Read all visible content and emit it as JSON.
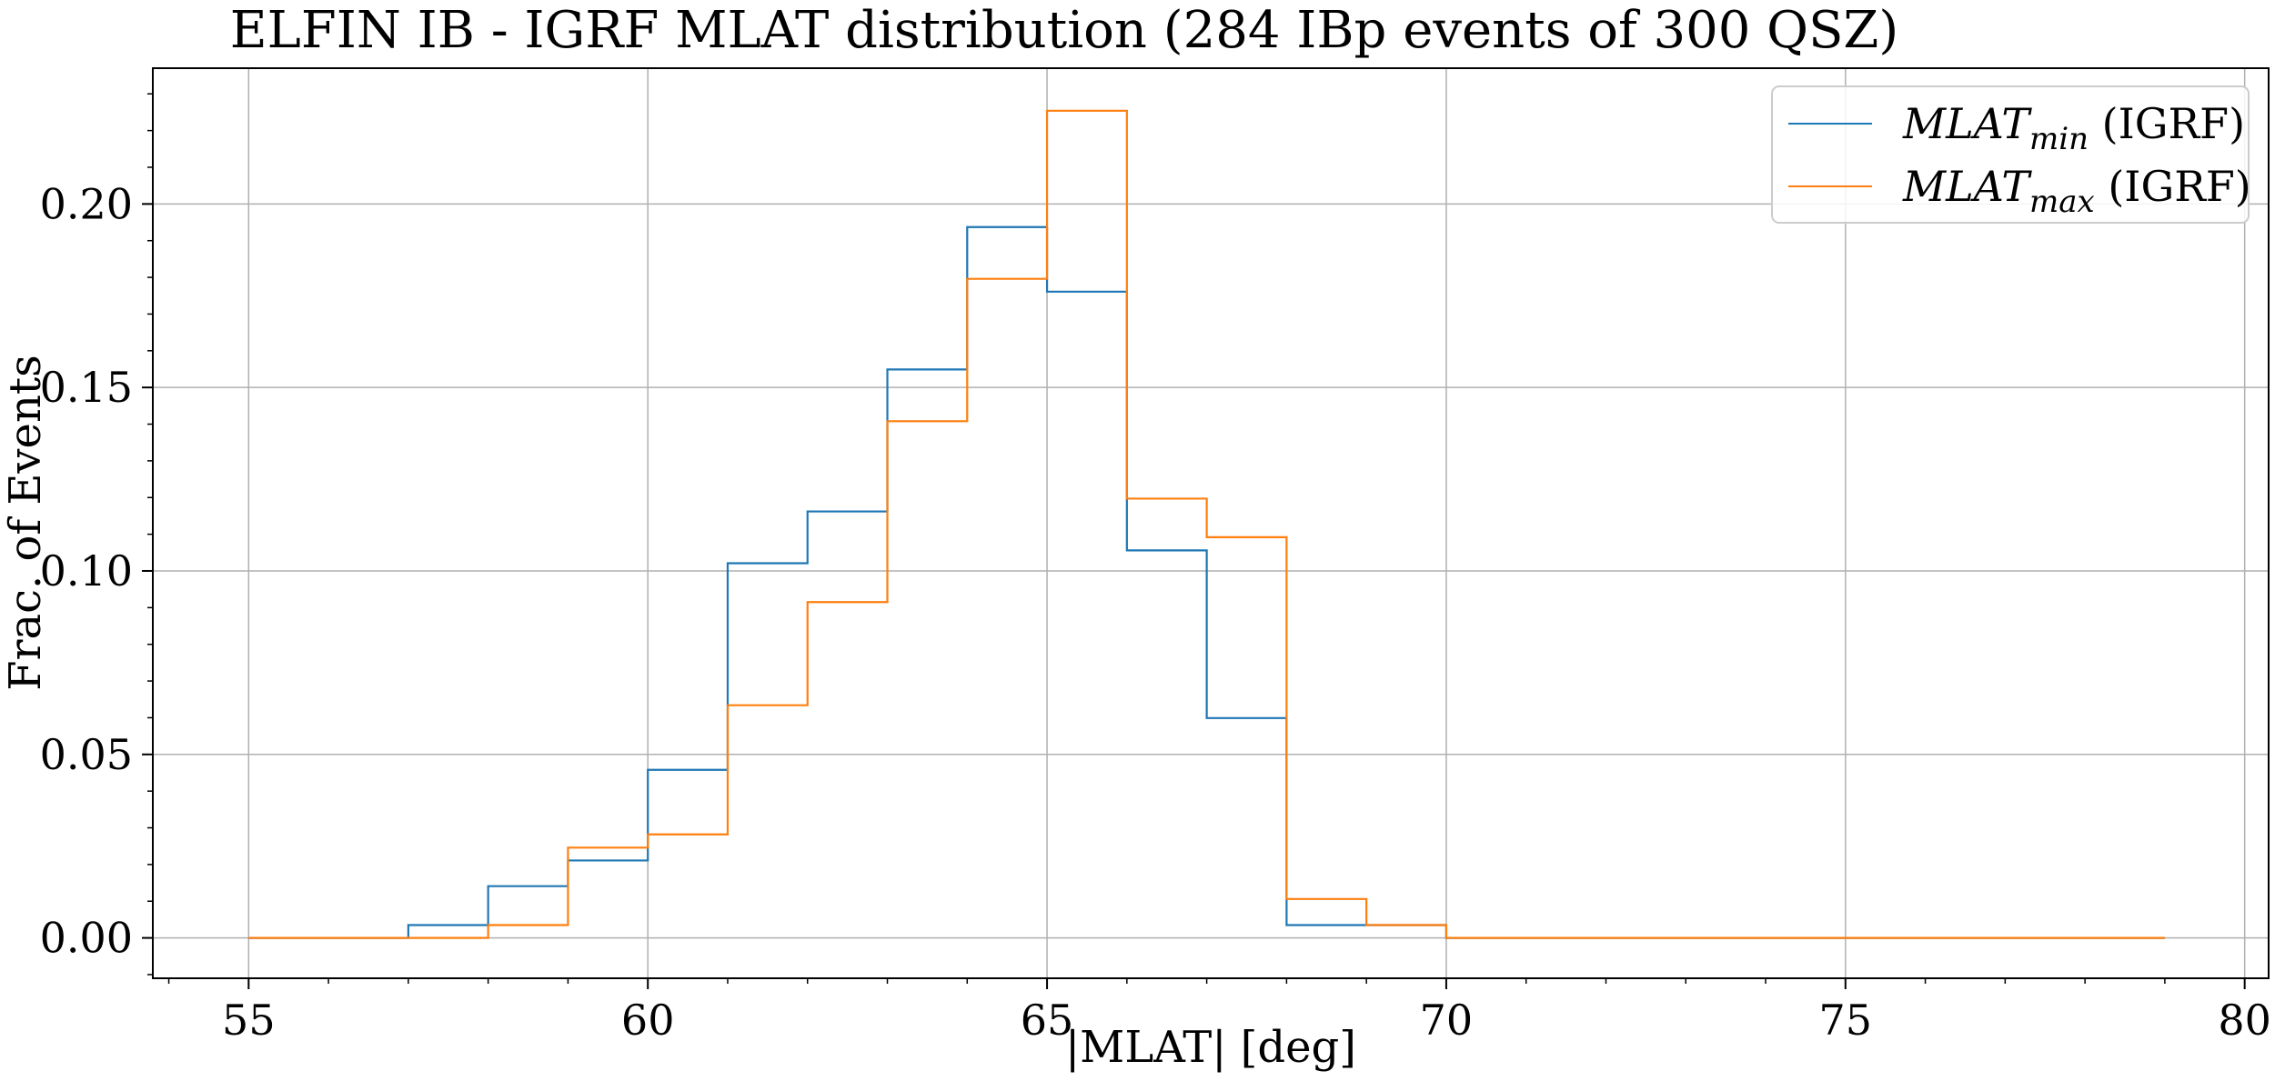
{
  "chart_data": {
    "type": "step-histogram",
    "title": "ELFIN IB - IGRF MLAT distribution (284 IBp events of 300 QSZ)",
    "xlabel": "|MLAT| [deg]",
    "ylabel": "Frac. of Events",
    "xlim": [
      53.8,
      80.3
    ],
    "ylim": [
      -0.011,
      0.237
    ],
    "xticks": [
      55,
      60,
      65,
      70,
      75,
      80
    ],
    "xtick_labels": [
      "55",
      "60",
      "65",
      "70",
      "75",
      "80"
    ],
    "yticks": [
      0.0,
      0.05,
      0.1,
      0.15,
      0.2
    ],
    "ytick_labels": [
      "0.00",
      "0.05",
      "0.10",
      "0.15",
      "0.20"
    ],
    "grid": true,
    "legend_position": "top-right",
    "bin_edges": [
      55,
      56,
      57,
      58,
      59,
      60,
      61,
      62,
      63,
      64,
      65,
      66,
      67,
      68,
      69,
      70,
      71,
      72,
      73,
      74,
      75,
      76,
      77,
      78,
      79
    ],
    "series": [
      {
        "name": "MLAT_min (IGRF)",
        "label_main": "MLAT",
        "label_sub": "min",
        "label_suffix": " (IGRF)",
        "color": "#1f77b4",
        "values": [
          0.0,
          0.0,
          0.0035,
          0.0141,
          0.0211,
          0.0458,
          0.1021,
          0.1162,
          0.1549,
          0.1937,
          0.1761,
          0.1056,
          0.0599,
          0.0035,
          0.0035,
          0.0,
          0.0,
          0.0,
          0.0,
          0.0,
          0.0,
          0.0,
          0.0,
          0.0
        ]
      },
      {
        "name": "MLAT_max (IGRF)",
        "label_main": "MLAT",
        "label_sub": "max",
        "label_suffix": " (IGRF)",
        "color": "#ff7f0e",
        "values": [
          0.0,
          0.0,
          0.0,
          0.0035,
          0.0246,
          0.0282,
          0.0634,
          0.0915,
          0.1408,
          0.1796,
          0.2254,
          0.1197,
          0.1092,
          0.0106,
          0.0035,
          0.0,
          0.0,
          0.0,
          0.0,
          0.0,
          0.0,
          0.0,
          0.0,
          0.0
        ]
      }
    ]
  }
}
